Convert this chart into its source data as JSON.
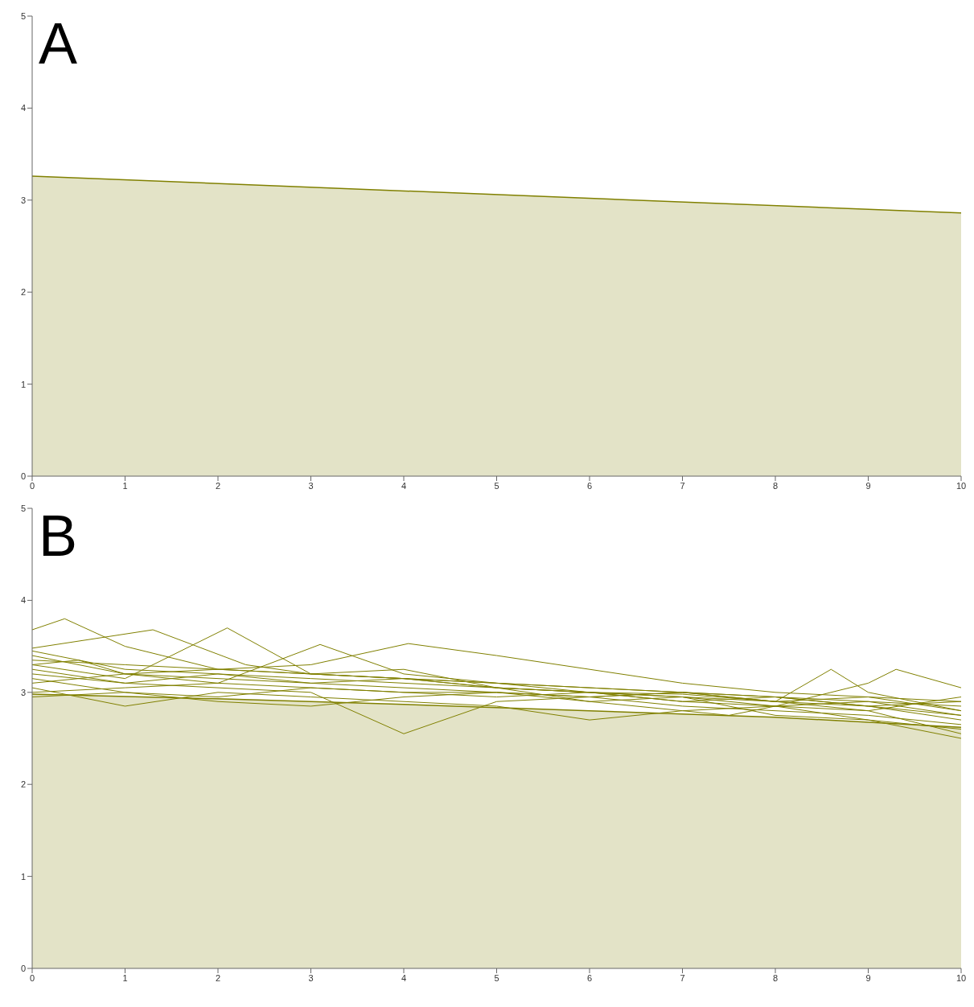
{
  "chart_data": [
    {
      "type": "area",
      "title": "A",
      "xlim": [
        0,
        10
      ],
      "xticks": [
        0,
        1,
        2,
        3,
        4,
        5,
        6,
        7,
        8,
        9,
        10
      ],
      "ylim": [
        0,
        5
      ],
      "yticks": [
        0,
        1,
        2,
        3,
        4,
        5
      ],
      "grid": false,
      "legend": false,
      "series": [
        {
          "color": "#808000",
          "x": [
            0,
            10
          ],
          "values": [
            3.26,
            2.86
          ]
        }
      ]
    },
    {
      "type": "line",
      "title": "B",
      "xlim": [
        0,
        10
      ],
      "xticks": [
        0,
        1,
        2,
        3,
        4,
        5,
        6,
        7,
        8,
        9,
        10
      ],
      "ylim": [
        0,
        5
      ],
      "yticks": [
        0,
        1,
        2,
        3,
        4,
        5
      ],
      "grid": false,
      "legend": false,
      "series": [
        {
          "type": "area",
          "color": "#808000",
          "x": [
            0,
            2,
            4,
            6,
            8,
            10
          ],
          "values": [
            2.98,
            2.93,
            2.87,
            2.8,
            2.73,
            2.62
          ]
        },
        {
          "color": "#808000",
          "x": [
            0,
            0.35,
            1,
            2,
            3,
            4,
            5,
            6,
            7,
            8,
            9,
            10
          ],
          "values": [
            3.68,
            3.8,
            3.5,
            3.25,
            3.2,
            3.15,
            3.1,
            3.05,
            3.0,
            2.95,
            2.9,
            2.85
          ]
        },
        {
          "color": "#808000",
          "x": [
            0,
            1.3,
            2.3,
            3,
            4,
            5,
            6,
            7,
            8,
            9,
            10
          ],
          "values": [
            3.48,
            3.68,
            3.3,
            3.2,
            3.15,
            3.05,
            3.0,
            2.95,
            2.9,
            2.85,
            2.75
          ]
        },
        {
          "color": "#808000",
          "x": [
            0,
            1,
            2.1,
            3,
            4,
            5,
            6,
            7,
            8,
            9,
            10
          ],
          "values": [
            3.3,
            3.15,
            3.7,
            3.2,
            3.25,
            3.05,
            3.0,
            2.98,
            2.9,
            2.95,
            2.8
          ]
        },
        {
          "color": "#808000",
          "x": [
            0,
            1,
            2,
            3.1,
            4,
            5,
            6,
            7,
            8,
            9,
            10
          ],
          "values": [
            3.4,
            3.2,
            3.1,
            3.52,
            3.2,
            3.1,
            3.0,
            2.9,
            2.95,
            2.85,
            2.7
          ]
        },
        {
          "color": "#808000",
          "x": [
            0,
            1,
            2,
            3,
            4.05,
            5,
            6,
            7,
            8,
            9,
            10
          ],
          "values": [
            3.35,
            3.3,
            3.25,
            3.3,
            3.53,
            3.4,
            3.25,
            3.1,
            3.0,
            2.95,
            2.9
          ]
        },
        {
          "color": "#808000",
          "x": [
            0,
            1,
            2,
            3,
            4,
            5,
            6,
            7,
            8,
            9,
            10
          ],
          "values": [
            3.2,
            3.1,
            3.05,
            3.0,
            2.55,
            2.9,
            2.95,
            2.85,
            2.8,
            2.75,
            2.65
          ]
        },
        {
          "color": "#808000",
          "x": [
            0,
            1,
            2,
            3,
            4,
            5,
            6,
            7,
            8,
            8.6,
            9,
            10
          ],
          "values": [
            3.1,
            3.2,
            3.15,
            3.1,
            3.05,
            3.0,
            2.95,
            3.0,
            2.9,
            3.25,
            3.0,
            2.8
          ]
        },
        {
          "color": "#808000",
          "x": [
            0,
            1,
            2,
            3,
            4,
            5,
            6,
            7,
            8,
            9,
            9.3,
            10
          ],
          "values": [
            3.0,
            3.05,
            3.1,
            3.05,
            3.0,
            2.95,
            3.0,
            2.9,
            2.85,
            3.1,
            3.25,
            3.05
          ]
        },
        {
          "color": "#808000",
          "x": [
            0,
            1,
            2,
            3,
            4,
            5,
            6,
            7,
            7.5,
            8,
            9,
            10
          ],
          "values": [
            3.25,
            3.1,
            3.2,
            3.15,
            3.1,
            3.05,
            2.9,
            2.8,
            2.75,
            2.85,
            2.8,
            2.55
          ]
        },
        {
          "color": "#808000",
          "x": [
            0,
            1,
            2,
            3,
            4,
            5,
            6,
            7,
            8,
            9,
            10
          ],
          "values": [
            2.95,
            3.0,
            2.9,
            2.85,
            2.95,
            3.0,
            2.9,
            2.95,
            2.75,
            2.7,
            2.5
          ]
        },
        {
          "color": "#808000",
          "x": [
            0,
            1,
            2,
            3,
            4,
            5,
            6,
            7,
            8,
            9,
            10
          ],
          "values": [
            3.45,
            3.25,
            3.2,
            3.1,
            3.15,
            3.05,
            3.0,
            2.95,
            2.85,
            2.9,
            2.75
          ]
        },
        {
          "color": "#808000",
          "x": [
            0,
            0.5,
            1,
            2,
            3,
            4,
            5,
            6,
            7,
            8,
            9,
            10
          ],
          "values": [
            3.3,
            3.35,
            3.2,
            3.25,
            3.2,
            3.15,
            3.1,
            3.05,
            3.0,
            2.95,
            2.85,
            2.9
          ]
        },
        {
          "color": "#808000",
          "x": [
            0,
            1,
            2,
            3,
            4,
            5,
            6,
            7,
            8,
            9,
            10
          ],
          "values": [
            3.05,
            2.85,
            3.0,
            2.95,
            2.9,
            2.85,
            2.7,
            2.8,
            2.85,
            2.7,
            2.6
          ]
        },
        {
          "color": "#808000",
          "x": [
            0,
            1,
            2,
            3,
            4,
            5,
            6,
            7,
            8,
            9,
            10
          ],
          "values": [
            3.15,
            3.0,
            2.95,
            3.05,
            3.0,
            3.0,
            2.95,
            3.0,
            2.9,
            2.8,
            2.95
          ]
        }
      ]
    }
  ]
}
